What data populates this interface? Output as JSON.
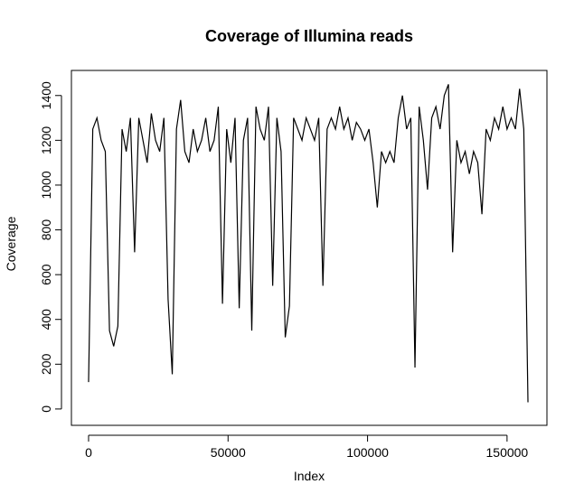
{
  "chart_data": {
    "type": "line",
    "title": "Coverage of Illumina reads",
    "x_label": "Index",
    "y_label": "Coverage",
    "x": [
      0,
      1500,
      3000,
      4500,
      6000,
      7500,
      9000,
      10500,
      12000,
      13500,
      15000,
      16500,
      18000,
      19500,
      21000,
      22500,
      24000,
      25500,
      27000,
      28500,
      30000,
      31500,
      33000,
      34500,
      36000,
      37500,
      39000,
      40500,
      42000,
      43500,
      45000,
      46500,
      48000,
      49500,
      51000,
      52500,
      54000,
      55500,
      57000,
      58500,
      60000,
      61500,
      63000,
      64500,
      66000,
      67500,
      69000,
      70500,
      72000,
      73500,
      75000,
      76500,
      78000,
      79500,
      81000,
      82500,
      84000,
      85500,
      87000,
      88500,
      90000,
      91500,
      93000,
      94500,
      96000,
      97500,
      99000,
      100500,
      102000,
      103500,
      105000,
      106500,
      108000,
      109500,
      111000,
      112500,
      114000,
      115500,
      117000,
      118500,
      120000,
      121500,
      123000,
      124500,
      126000,
      127500,
      129000,
      130500,
      132000,
      133500,
      135000,
      136500,
      138000,
      139500,
      141000,
      142500,
      144000,
      145500,
      147000,
      148500,
      150000,
      151500,
      153000,
      154500,
      156000,
      157500
    ],
    "values": [
      120,
      1250,
      1300,
      1200,
      1150,
      350,
      280,
      370,
      1250,
      1150,
      1300,
      700,
      1300,
      1200,
      1100,
      1320,
      1200,
      1150,
      1300,
      490,
      155,
      1250,
      1380,
      1150,
      1100,
      1250,
      1150,
      1200,
      1300,
      1150,
      1200,
      1350,
      470,
      1250,
      1100,
      1300,
      450,
      1200,
      1300,
      350,
      1350,
      1250,
      1200,
      1350,
      550,
      1300,
      1150,
      320,
      460,
      1300,
      1250,
      1200,
      1300,
      1250,
      1200,
      1300,
      550,
      1250,
      1300,
      1250,
      1350,
      1250,
      1300,
      1200,
      1280,
      1250,
      1200,
      1250,
      1100,
      900,
      1150,
      1100,
      1150,
      1100,
      1300,
      1400,
      1250,
      1300,
      185,
      1350,
      1200,
      980,
      1300,
      1350,
      1250,
      1400,
      1450,
      700,
      1200,
      1100,
      1150,
      1050,
      1150,
      1100,
      870,
      1250,
      1200,
      1300,
      1250,
      1350,
      1250,
      1300,
      1250,
      1430,
      1250,
      30
    ],
    "color": "#000000",
    "xlim": [
      -6150,
      164300
    ],
    "xticks": [
      0,
      50000,
      100000,
      150000
    ],
    "ylim": [
      -73,
      1512
    ],
    "yticks": [
      0,
      200,
      400,
      600,
      800,
      1000,
      1200,
      1400
    ]
  }
}
